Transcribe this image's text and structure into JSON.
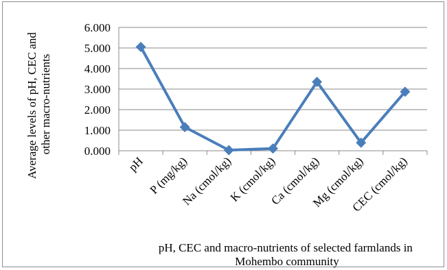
{
  "chart_data": {
    "type": "line",
    "categories": [
      "pH",
      "P (mg/kg)",
      "Na (cmol/kg)",
      "K (cmol/kg)",
      "Ca (cmol/kg)",
      "Mg (cmol/kg)",
      "CEC (cmol/kg)"
    ],
    "series": [
      {
        "values": [
          5.05,
          1.15,
          0.03,
          0.11,
          3.35,
          0.39,
          2.87
        ]
      }
    ],
    "yticks": [
      "0.000",
      "1.000",
      "2.000",
      "3.000",
      "4.000",
      "5.000",
      "6.000"
    ],
    "ylim": [
      0,
      6
    ],
    "ylabel": [
      "Average levels of pH, CEC and",
      "other macro-nutrients"
    ],
    "xlabel": [
      "pH, CEC and macro-nutrients of selected farmlands in",
      "Mohembo community"
    ],
    "grid": true,
    "colors": {
      "line": "#4a7ebb",
      "grid": "#888888",
      "axis": "#888888"
    }
  }
}
